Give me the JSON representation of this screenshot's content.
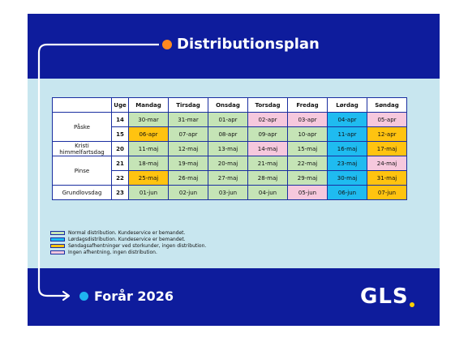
{
  "title": "Distributionsplan",
  "footer_title": "Forår 2026",
  "logo": "GLS",
  "colors": {
    "band": "#0e1c9c",
    "background": "#c8e6ef",
    "normal": "#c5e4b6",
    "saturday": "#1fbbf0",
    "sunday": "#ffc310",
    "none": "#f6c8dd",
    "title_dot": "#ff8a1f",
    "footer_dot": "#1fb4f0",
    "logo_dot": "#ffd100"
  },
  "table": {
    "headers": [
      "Uge",
      "Mandag",
      "Tirsdag",
      "Onsdag",
      "Torsdag",
      "Fredag",
      "Lørdag",
      "Søndag"
    ],
    "groups": [
      {
        "label": "Påske",
        "rows": [
          {
            "week": "14",
            "cells": [
              {
                "t": "30-mar",
                "c": "n"
              },
              {
                "t": "31-mar",
                "c": "n"
              },
              {
                "t": "01-apr",
                "c": "n"
              },
              {
                "t": "02-apr",
                "c": "x"
              },
              {
                "t": "03-apr",
                "c": "x"
              },
              {
                "t": "04-apr",
                "c": "l"
              },
              {
                "t": "05-apr",
                "c": "x"
              }
            ]
          },
          {
            "week": "15",
            "cells": [
              {
                "t": "06-apr",
                "c": "s"
              },
              {
                "t": "07-apr",
                "c": "n"
              },
              {
                "t": "08-apr",
                "c": "n"
              },
              {
                "t": "09-apr",
                "c": "n"
              },
              {
                "t": "10-apr",
                "c": "n"
              },
              {
                "t": "11-apr",
                "c": "l"
              },
              {
                "t": "12-apr",
                "c": "s"
              }
            ]
          }
        ]
      },
      {
        "label": "Kristi himmelfartsdag",
        "rows": [
          {
            "week": "20",
            "cells": [
              {
                "t": "11-maj",
                "c": "n"
              },
              {
                "t": "12-maj",
                "c": "n"
              },
              {
                "t": "13-maj",
                "c": "n"
              },
              {
                "t": "14-maj",
                "c": "x"
              },
              {
                "t": "15-maj",
                "c": "n"
              },
              {
                "t": "16-maj",
                "c": "l"
              },
              {
                "t": "17-maj",
                "c": "s"
              }
            ]
          }
        ]
      },
      {
        "label": "Pinse",
        "rows": [
          {
            "week": "21",
            "cells": [
              {
                "t": "18-maj",
                "c": "n"
              },
              {
                "t": "19-maj",
                "c": "n"
              },
              {
                "t": "20-maj",
                "c": "n"
              },
              {
                "t": "21-maj",
                "c": "n"
              },
              {
                "t": "22-maj",
                "c": "n"
              },
              {
                "t": "23-maj",
                "c": "l"
              },
              {
                "t": "24-maj",
                "c": "x"
              }
            ]
          },
          {
            "week": "22",
            "cells": [
              {
                "t": "25-maj",
                "c": "s"
              },
              {
                "t": "26-maj",
                "c": "n"
              },
              {
                "t": "27-maj",
                "c": "n"
              },
              {
                "t": "28-maj",
                "c": "n"
              },
              {
                "t": "29-maj",
                "c": "n"
              },
              {
                "t": "30-maj",
                "c": "l"
              },
              {
                "t": "31-maj",
                "c": "s"
              }
            ]
          }
        ]
      },
      {
        "label": "Grundlovsdag",
        "rows": [
          {
            "week": "23",
            "cells": [
              {
                "t": "01-jun",
                "c": "n"
              },
              {
                "t": "02-jun",
                "c": "n"
              },
              {
                "t": "03-jun",
                "c": "n"
              },
              {
                "t": "04-jun",
                "c": "n"
              },
              {
                "t": "05-jun",
                "c": "x"
              },
              {
                "t": "06-jun",
                "c": "l"
              },
              {
                "t": "07-jun",
                "c": "s"
              }
            ]
          }
        ]
      }
    ]
  },
  "legend": [
    {
      "c": "n",
      "text": "Normal distribution. Kundeservice er bemandet."
    },
    {
      "c": "l",
      "text": "Lørdagsdistribution. Kundeservice er bemandet."
    },
    {
      "c": "s",
      "text": "Søndagsafhentninger ved storkunder, ingen distribution."
    },
    {
      "c": "x",
      "text": "Ingen afhentning, ingen distribution."
    }
  ]
}
